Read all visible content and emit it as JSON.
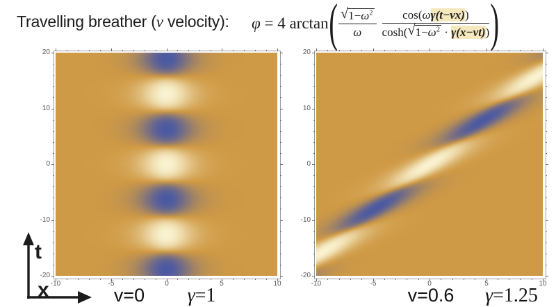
{
  "slide": {
    "title_tokens": [
      {
        "t": "Travelling breather ("
      },
      {
        "t": "v",
        "i": true,
        "sf": true
      },
      {
        "t": " velocity):"
      }
    ],
    "formula": {
      "lead_tokens": [
        {
          "t": "φ",
          "i": true
        },
        {
          "t": " = 4 arctan"
        }
      ],
      "open_paren": "(",
      "close_paren": ")",
      "frac1": {
        "num_tokens": [
          {
            "sqrt": [
              {
                "t": "1−"
              },
              {
                "t": "ω",
                "i": true
              },
              {
                "t": "2",
                "sup": true
              }
            ]
          }
        ],
        "den_tokens": [
          {
            "t": "ω",
            "i": true
          }
        ]
      },
      "frac2": {
        "num_tokens": [
          {
            "t": "cos"
          },
          {
            "t": "("
          },
          {
            "t": "ω",
            "i": true
          },
          {
            "t": "γ(t−vx)",
            "i": true,
            "b": true,
            "hl": true
          },
          {
            "t": ")"
          }
        ],
        "den_tokens": [
          {
            "t": "cosh"
          },
          {
            "t": "("
          },
          {
            "sqrt": [
              {
                "t": "1−"
              },
              {
                "t": "ω",
                "i": true
              },
              {
                "t": "2",
                "sup": true
              }
            ]
          },
          {
            "t": " · "
          },
          {
            "t": "γ(x−vt)",
            "i": true,
            "b": true,
            "hl": true
          },
          {
            "t": ")"
          }
        ]
      }
    },
    "axes_indicator": {
      "vertical_label": "t",
      "horizontal_label": "x"
    }
  },
  "math_symbols": {
    "radical": "√"
  },
  "captions": [
    {
      "v_label": "v=0",
      "gamma_tokens": [
        {
          "t": "γ",
          "i": true
        },
        {
          "t": "=1"
        }
      ]
    },
    {
      "v_label": "v=0.6",
      "gamma_tokens": [
        {
          "t": "γ",
          "i": true
        },
        {
          "t": "=1.25"
        }
      ]
    }
  ],
  "colors": {
    "background": "#ffffff",
    "text": "#1c1c1c",
    "formula_highlight": "#f5e8bd",
    "plot_frame": "#9b9b9b",
    "tick": "#666666",
    "tick_label": "#555555",
    "colormap_low": "#4b59a3",
    "colormap_mid": "#cf9a45",
    "colormap_high": "#faf3d1"
  },
  "chart_data": [
    {
      "type": "heatmap",
      "title": "v=0, γ=1",
      "formula": "φ = 4·arctan( (√(1−ω²)/ω) · cos(ωγ(t−vx)) / cosh(√(1−ω²)·γ(x−vt)) )",
      "params": {
        "omega": 0.5,
        "v": 0,
        "gamma": 1
      },
      "xlabel": "x",
      "ylabel": "t",
      "xlim": [
        -10,
        10
      ],
      "ylim": [
        -20,
        20
      ],
      "x_ticks": [
        {
          "v": -10,
          "label": "-10"
        },
        {
          "v": -5,
          "label": "-5"
        },
        {
          "v": 0,
          "label": "0"
        },
        {
          "v": 5,
          "label": "5"
        },
        {
          "v": 10,
          "label": "10"
        }
      ],
      "y_ticks": [
        {
          "v": 20,
          "label": "20"
        },
        {
          "v": 10,
          "label": "10"
        },
        {
          "v": 0,
          "label": "0"
        },
        {
          "v": -10,
          "label": "-10"
        },
        {
          "v": -20,
          "label": "-20"
        }
      ],
      "x_minor_step": 1,
      "y_minor_step": 2,
      "grid": false,
      "legend": false,
      "colormap": {
        "low": "#4b59a3",
        "mid": "#cf9a45",
        "high": "#faf3d1"
      }
    },
    {
      "type": "heatmap",
      "title": "v=0.6, γ=1.25",
      "formula": "φ = 4·arctan( (√(1−ω²)/ω) · cos(ωγ(t−vx)) / cosh(√(1−ω²)·γ(x−vt)) )",
      "params": {
        "omega": 0.5,
        "v": 0.6,
        "gamma": 1.25
      },
      "xlabel": "x",
      "ylabel": "t",
      "xlim": [
        -10,
        10
      ],
      "ylim": [
        -20,
        20
      ],
      "x_ticks": [
        {
          "v": -10,
          "label": "-10"
        },
        {
          "v": -5,
          "label": "-5"
        },
        {
          "v": 0,
          "label": "0"
        },
        {
          "v": 5,
          "label": "5"
        },
        {
          "v": 10,
          "label": "10"
        }
      ],
      "y_ticks": [
        {
          "v": 20,
          "label": "20"
        },
        {
          "v": 10,
          "label": "10"
        },
        {
          "v": 0,
          "label": "0"
        },
        {
          "v": -10,
          "label": "-10"
        },
        {
          "v": -20,
          "label": "-20"
        }
      ],
      "x_minor_step": 1,
      "y_minor_step": 2,
      "grid": false,
      "legend": false,
      "colormap": {
        "low": "#4b59a3",
        "mid": "#cf9a45",
        "high": "#faf3d1"
      }
    }
  ]
}
